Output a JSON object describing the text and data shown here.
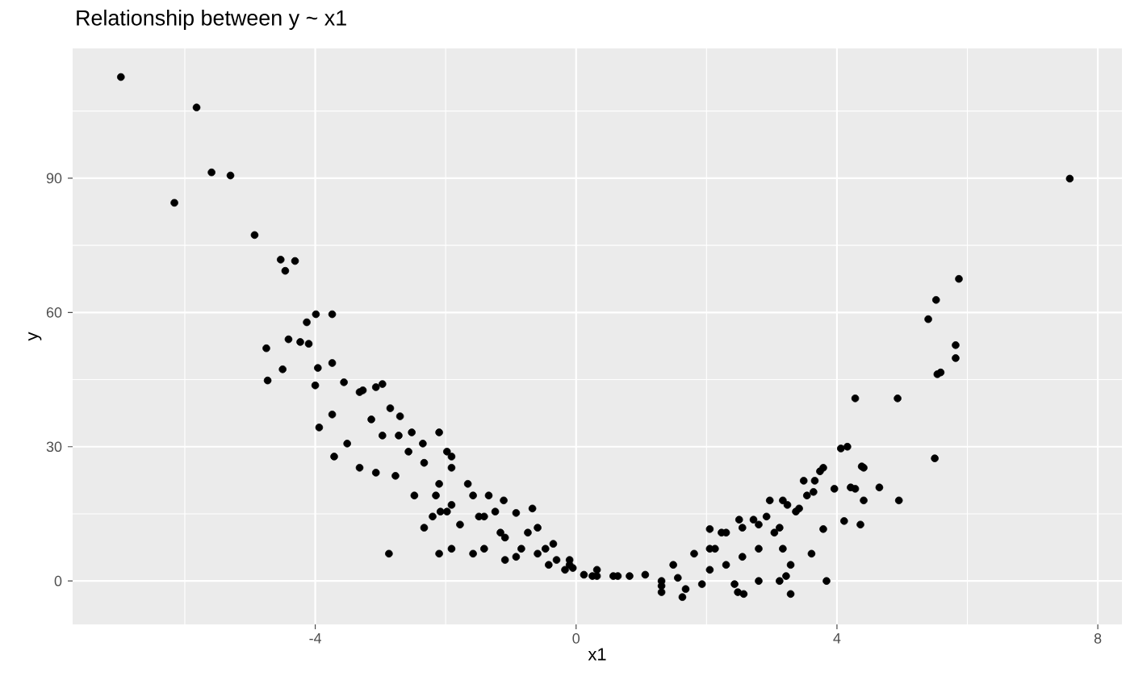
{
  "chart_data": {
    "type": "scatter",
    "title": "Relationship between y ~ x1",
    "xlabel": "x1",
    "ylabel": "y",
    "xlim": [
      -7.72,
      8.37
    ],
    "ylim": [
      -9.7,
      119
    ],
    "xticks": [
      -4,
      0,
      4,
      8
    ],
    "yticks": [
      0,
      30,
      60,
      90
    ],
    "grid": true,
    "marker": "circle",
    "series": [
      {
        "color": "#000000",
        "x": [
          -6.98,
          -6.16,
          -5.82,
          -5.59,
          -5.3,
          -4.93,
          -4.53,
          -4.31,
          -4.46,
          -4.75,
          -4.73,
          -4.5,
          -4.41,
          -4.23,
          -4.13,
          -3.99,
          -4.1,
          -3.96,
          -4.0,
          -3.74,
          -3.74,
          -3.94,
          -3.71,
          -3.51,
          -3.27,
          -3.07,
          -2.97,
          -2.87,
          -3.32,
          -2.7,
          -2.52,
          -2.35,
          -2.77,
          -2.1,
          -2.2,
          -1.91,
          -1.98,
          -1.66,
          -1.41,
          -1.78,
          -1.41,
          -1.16,
          -0.92,
          -2.1,
          -1.11,
          -0.67,
          -0.47,
          -0.3,
          -0.05,
          0.12,
          0.32,
          0.57,
          0.82,
          1.06,
          1.31,
          1.56,
          1.68,
          1.93,
          2.05,
          2.3,
          2.43,
          2.55,
          2.8,
          2.3,
          2.05,
          2.5,
          2.8,
          2.92,
          3.04,
          3.17,
          3.42,
          3.49,
          3.64,
          3.17,
          3.12,
          3.29,
          2.57,
          3.79,
          3.84,
          4.06,
          4.16,
          4.28,
          4.41,
          4.28,
          4.65,
          4.41,
          4.93,
          4.95,
          5.5,
          5.4,
          5.52,
          5.54,
          5.59,
          5.82,
          5.82,
          5.87,
          7.57,
          -3.74,
          -3.56,
          -3.32,
          -2.97,
          -2.85,
          -3.14,
          -2.72,
          -2.1,
          -2.57,
          -3.07,
          -1.98,
          -2.33,
          -1.91,
          -2.48,
          -1.58,
          -1.34,
          -1.24,
          -0.92,
          -0.74,
          -0.59,
          -0.35,
          -0.1,
          0.25,
          -1.09,
          -1.58,
          -1.91,
          -2.33,
          -2.08,
          -1.91,
          -2.15,
          -1.49,
          -1.09,
          -0.84,
          -0.59,
          -0.42,
          -0.17,
          -0.1,
          0.64,
          1.31,
          1.63,
          1.49,
          1.81,
          2.13,
          2.23,
          2.48,
          2.55,
          2.72,
          2.05,
          2.97,
          3.12,
          3.24,
          3.37,
          3.29,
          3.22,
          3.61,
          3.54,
          3.74,
          3.66,
          3.96,
          3.79,
          4.11,
          4.36,
          4.21,
          4.38,
          2.8,
          1.31,
          0.32
        ],
        "values": [
          112.6,
          84.5,
          105.8,
          91.3,
          90.6,
          77.3,
          71.8,
          71.5,
          69.3,
          52,
          44.8,
          47.3,
          54,
          53.4,
          57.8,
          59.6,
          53,
          47.6,
          43.7,
          48.7,
          37.2,
          34.3,
          27.8,
          30.7,
          42.6,
          43.3,
          32.5,
          6.1,
          25.3,
          36.8,
          33.2,
          30.7,
          23.5,
          21.7,
          14.4,
          27.8,
          15.5,
          21.7,
          14.4,
          12.6,
          7.2,
          10.8,
          5.4,
          6.1,
          18,
          16.2,
          7.2,
          4.7,
          2.9,
          1.4,
          1.1,
          1.1,
          1.1,
          1.4,
          0,
          0.7,
          -1.8,
          -0.7,
          2.5,
          3.6,
          -0.7,
          5.4,
          7.2,
          10.8,
          7.2,
          13.7,
          12.6,
          14.4,
          10.8,
          18,
          16.2,
          22.4,
          19.9,
          7.2,
          0,
          -2.9,
          -2.9,
          25.3,
          0,
          29.6,
          30,
          40.8,
          25.3,
          20.6,
          20.9,
          18,
          40.8,
          18,
          27.4,
          58.5,
          62.8,
          46.2,
          46.6,
          52.7,
          49.8,
          67.5,
          89.9,
          59.6,
          44.4,
          42.2,
          44,
          38.6,
          36.1,
          32.5,
          33.2,
          28.9,
          24.2,
          28.9,
          26.4,
          25.3,
          19.1,
          19.1,
          19.1,
          15.5,
          15.2,
          10.8,
          11.9,
          8.3,
          4.7,
          1.1,
          4.7,
          6.1,
          7.2,
          11.9,
          15.5,
          17.0,
          19.1,
          14.4,
          9.7,
          7.2,
          6.1,
          3.6,
          2.5,
          3.6,
          1.1,
          -1.1,
          -3.6,
          3.6,
          6.1,
          7.2,
          10.8,
          -2.5,
          11.9,
          13.7,
          11.6,
          18,
          11.9,
          17,
          15.5,
          3.6,
          1.1,
          6.1,
          19.1,
          24.5,
          22.4,
          20.6,
          11.6,
          13.4,
          12.6,
          20.9,
          25.6,
          0,
          -2.5,
          2.5
        ]
      }
    ]
  }
}
